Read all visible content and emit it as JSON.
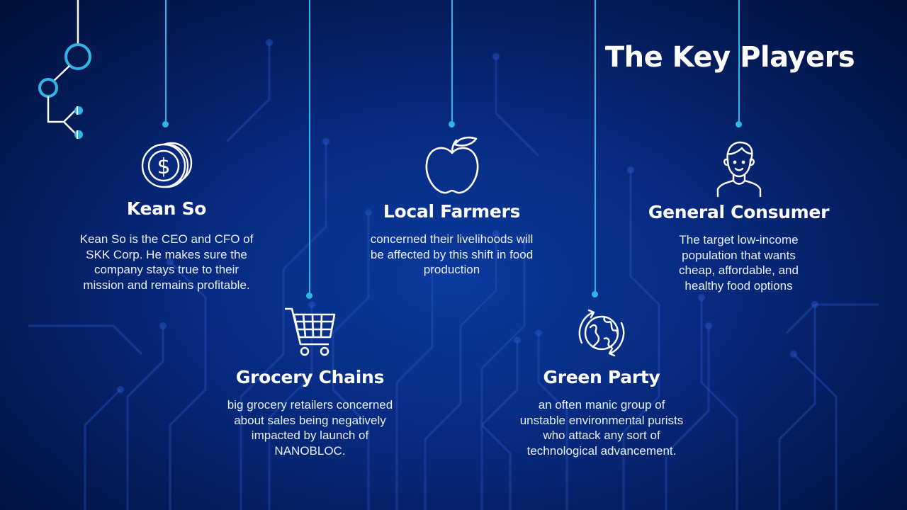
{
  "slide": {
    "title": "The Key Players",
    "accent_color": "#2fb6e6",
    "background_color": "#072a80"
  },
  "players": [
    {
      "name": "Kean So",
      "icon": "dollar-coins-icon",
      "description": "Kean So is the CEO and CFO of SKK Corp. He makes sure the company stays true to their mission and remains profitable."
    },
    {
      "name": "Grocery Chains",
      "icon": "shopping-cart-icon",
      "description": "big grocery retailers concerned about sales being negatively impacted by launch of NANOBLOC."
    },
    {
      "name": "Local Farmers",
      "icon": "apple-icon",
      "description": "concerned their livelihoods will be affected by this shift in food production"
    },
    {
      "name": "Green Party",
      "icon": "globe-recycle-icon",
      "description": "an often manic group of unstable  environmental purists who attack any sort of technological advancement."
    },
    {
      "name": "General Consumer",
      "icon": "person-icon",
      "description": "The target low-income population that wants cheap, affordable, and healthy food options"
    }
  ]
}
